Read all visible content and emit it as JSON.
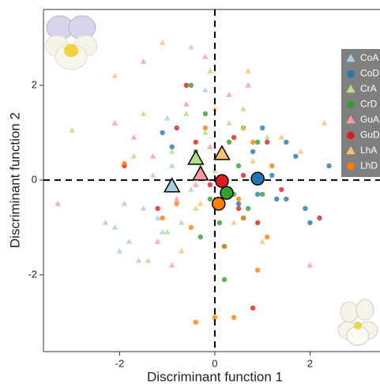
{
  "chart_data": {
    "type": "scatter",
    "x_label": "Discriminant function 1",
    "y_label": "Discriminant function 2",
    "xlim": [
      -3.6,
      3.47
    ],
    "ylim": [
      -3.62,
      3.6
    ],
    "xticks": [
      -2,
      0,
      2
    ],
    "yticks": [
      -2,
      0,
      2
    ],
    "vlines": [
      0
    ],
    "hlines": [
      0
    ],
    "legend": "right",
    "series": [
      {
        "name": "CoA",
        "color": "#a6cee3",
        "marker": "triangle",
        "x": [
          -2.1,
          -1.8,
          -1.5,
          -1.2,
          -0.9,
          -1.6,
          -2.3,
          -0.5,
          -1.0,
          -1.9,
          -0.7,
          -1.3,
          -2.0,
          -0.2,
          -1.1
        ],
        "y": [
          -1.0,
          -1.3,
          -0.6,
          -0.8,
          0.3,
          -1.7,
          -0.9,
          -0.2,
          1.3,
          -0.5,
          -0.9,
          0.1,
          -1.5,
          1.9,
          -1.1
        ],
        "centroid": [
          -0.9,
          -0.13
        ]
      },
      {
        "name": "CoD",
        "color": "#1f78b4",
        "marker": "circle",
        "x": [
          1.5,
          1.3,
          0.8,
          1.2,
          1.9,
          2.0,
          0.6,
          1.7,
          0.9,
          -1.1,
          2.4,
          1.0,
          0.5,
          1.5,
          -0.9
        ],
        "y": [
          0.8,
          -0.4,
          0.6,
          0.1,
          -0.6,
          -0.9,
          -0.8,
          0.5,
          -0.3,
          1.0,
          0.3,
          1.1,
          -0.5,
          -0.4,
          0.7
        ],
        "centroid": [
          0.9,
          0.03
        ]
      },
      {
        "name": "CrA",
        "color": "#b2df8a",
        "marker": "triangle",
        "x": [
          -3.0,
          -0.5,
          -0.1,
          -0.6,
          -1.4,
          0.3,
          -0.3,
          -0.9,
          0.6,
          -1.7,
          0.0,
          -0.4,
          -0.2,
          1.1,
          -1.0
        ],
        "y": [
          1.05,
          2.8,
          2.3,
          1.4,
          -1.7,
          1.2,
          0.3,
          0.6,
          1.5,
          0.5,
          0.2,
          -0.6,
          1.0,
          0.9,
          -1.1
        ],
        "centroid": [
          -0.4,
          0.45
        ]
      },
      {
        "name": "CrD",
        "color": "#33a02c",
        "marker": "circle",
        "x": [
          -0.5,
          -0.2,
          0.3,
          0.4,
          0.1,
          0.2,
          -0.3,
          0.7,
          0.5,
          -0.1,
          0.9,
          -0.4,
          0.2,
          1.0,
          0.6
        ],
        "y": [
          2.0,
          1.4,
          0.8,
          -0.3,
          -0.9,
          -2.1,
          -1.2,
          -0.6,
          0.3,
          -0.4,
          0.8,
          0.6,
          -1.4,
          -0.3,
          1.1
        ],
        "centroid": [
          0.25,
          -0.27
        ]
      },
      {
        "name": "GuA",
        "color": "#fb9a99",
        "marker": "triangle",
        "x": [
          -3.3,
          -1.5,
          -2.1,
          -1.2,
          -0.6,
          -0.1,
          -0.8,
          -1.7,
          0.3,
          2.0,
          -0.4,
          -1.3,
          0.7,
          -0.9,
          -0.2
        ],
        "y": [
          -0.5,
          2.5,
          1.2,
          -1.3,
          1.6,
          0.7,
          -0.4,
          0.9,
          1.8,
          -1.8,
          -0.1,
          0.5,
          2.0,
          -1.8,
          2.6
        ],
        "centroid": [
          -0.3,
          0.12
        ]
      },
      {
        "name": "GuD",
        "color": "#e31a1c",
        "marker": "circle",
        "x": [
          -1.9,
          -0.6,
          -0.4,
          0.5,
          0.8,
          1.1,
          2.2,
          -1.2,
          0.3,
          0.6,
          -0.1,
          1.4,
          -0.8,
          0.9,
          0.4
        ],
        "y": [
          0.3,
          2.0,
          0.8,
          -0.6,
          -2.7,
          0.8,
          -0.8,
          -0.6,
          -0.3,
          0.1,
          -0.1,
          -0.2,
          1.1,
          -0.9,
          0.9
        ],
        "centroid": [
          0.15,
          -0.02
        ]
      },
      {
        "name": "LhA",
        "color": "#fdbf6f",
        "marker": "triangle",
        "x": [
          -1.1,
          -2.1,
          0.7,
          1.4,
          2.3,
          0.6,
          -0.7,
          0.4,
          1.0,
          0.0,
          -0.3,
          1.8,
          0.2,
          -1.5,
          0.8
        ],
        "y": [
          2.9,
          2.2,
          2.3,
          0.9,
          1.2,
          1.1,
          -1.5,
          -0.9,
          -1.3,
          1.5,
          -0.5,
          0.6,
          -0.2,
          1.4,
          0.4
        ],
        "centroid": [
          0.15,
          0.55
        ]
      },
      {
        "name": "LhD",
        "color": "#ff7f00",
        "marker": "circle",
        "x": [
          -1.9,
          -0.5,
          0.0,
          0.4,
          -0.4,
          0.6,
          1.1,
          0.2,
          -0.8,
          0.8,
          1.2,
          -0.2,
          0.5,
          -1.1,
          0.9
        ],
        "y": [
          0.35,
          -1.0,
          -2.9,
          -2.9,
          -3.0,
          -0.8,
          -1.2,
          -1.4,
          -0.5,
          0.8,
          0.3,
          1.1,
          -0.4,
          -0.8,
          -1.9
        ],
        "centroid": [
          0.08,
          -0.5
        ]
      }
    ]
  }
}
